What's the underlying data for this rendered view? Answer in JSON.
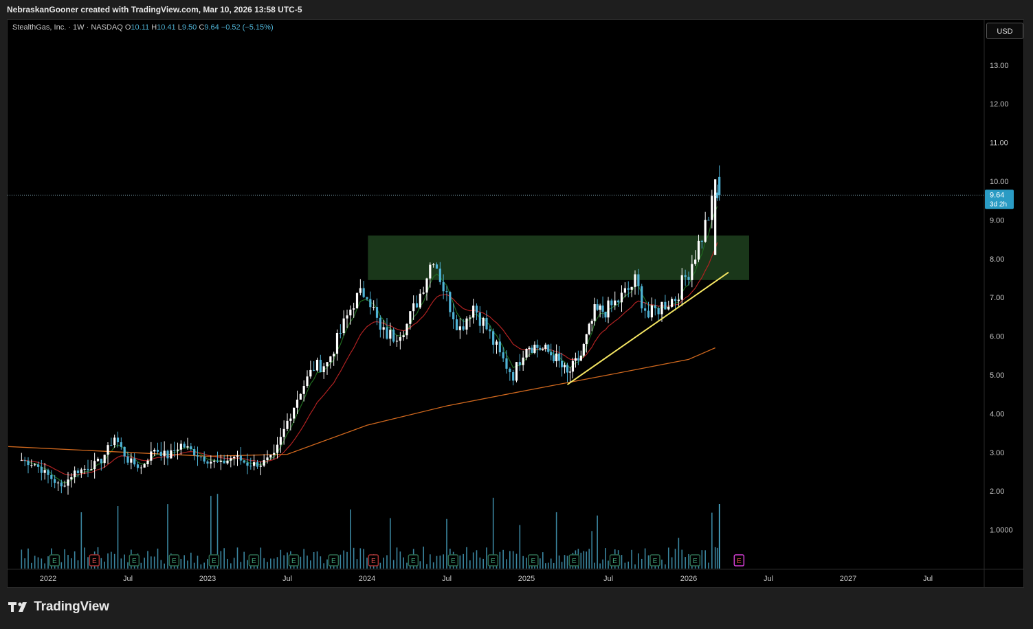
{
  "header": {
    "attribution": "NebraskanGooner created with TradingView.com, Mar 10, 2026 13:58 UTC-5"
  },
  "legend": {
    "symbol": "StealthGas, Inc. · 1W · NASDAQ",
    "open_label": "O",
    "open": "10.11",
    "high_label": "H",
    "high": "10.41",
    "low_label": "L",
    "low": "9.50",
    "close_label": "C",
    "close": "9.64",
    "change": "−0.52 (−5.15%)"
  },
  "currency_button": "USD",
  "last_price": {
    "price": "9.64",
    "countdown": "3d 2h"
  },
  "earnings_marker": "E",
  "footer": {
    "brand": "TradingView"
  },
  "colors": {
    "up": "#ffffff",
    "down": "#4fb3d6",
    "ma_fast": "#1f6b1f",
    "ma_mid": "#b22222",
    "ma_slow": "#d2691e",
    "zone": "#1b3a1b",
    "trendline": "#f5e663",
    "volume": "#4fb3d6",
    "earnings_future": "#d63fd6"
  },
  "chart_data": {
    "type": "candlestick",
    "title": "StealthGas, Inc. · 1W · NASDAQ",
    "ylim": [
      0,
      13.8
    ],
    "y_ticks": [
      "13.00",
      "12.00",
      "11.00",
      "10.00",
      "9.00",
      "8.00",
      "7.00",
      "6.00",
      "5.00",
      "4.00",
      "3.00",
      "2.00",
      "1.0000"
    ],
    "y_tick_values": [
      13,
      12,
      11,
      10,
      9,
      8,
      7,
      6,
      5,
      4,
      3,
      2,
      1
    ],
    "x_ticks": [
      "2022",
      "Jul",
      "2023",
      "Jul",
      "2024",
      "Jul",
      "2025",
      "Jul",
      "2026",
      "Jul",
      "2027",
      "Jul"
    ],
    "x_tick_dates": [
      "2022-01",
      "2022-07",
      "2023-01",
      "2023-07",
      "2024-01",
      "2024-07",
      "2025-01",
      "2025-07",
      "2026-01",
      "2026-07",
      "2027-01",
      "2027-07"
    ],
    "close_price_series": [
      [
        "2021-11",
        2.8
      ],
      [
        "2021-12",
        2.7
      ],
      [
        "2022-01",
        2.4
      ],
      [
        "2022-02",
        2.1
      ],
      [
        "2022-03",
        2.5
      ],
      [
        "2022-04",
        2.6
      ],
      [
        "2022-05",
        2.8
      ],
      [
        "2022-06",
        3.4
      ],
      [
        "2022-07",
        2.8
      ],
      [
        "2022-08",
        2.6
      ],
      [
        "2022-09",
        3.1
      ],
      [
        "2022-10",
        2.9
      ],
      [
        "2022-11",
        3.2
      ],
      [
        "2022-12",
        3.0
      ],
      [
        "2023-01",
        2.8
      ],
      [
        "2023-02",
        2.7
      ],
      [
        "2023-03",
        2.9
      ],
      [
        "2023-04",
        2.7
      ],
      [
        "2023-05",
        2.7
      ],
      [
        "2023-06",
        2.9
      ],
      [
        "2023-07",
        3.8
      ],
      [
        "2023-08",
        4.6
      ],
      [
        "2023-09",
        5.2
      ],
      [
        "2023-10",
        5.3
      ],
      [
        "2023-11",
        6.1
      ],
      [
        "2023-12",
        6.9
      ],
      [
        "2024-01",
        7.2
      ],
      [
        "2024-02",
        6.1
      ],
      [
        "2024-03",
        6.0
      ],
      [
        "2024-04",
        6.3
      ],
      [
        "2024-05",
        7.1
      ],
      [
        "2024-06",
        8.1
      ],
      [
        "2024-07",
        7.0
      ],
      [
        "2024-08",
        6.2
      ],
      [
        "2024-09",
        6.8
      ],
      [
        "2024-10",
        6.2
      ],
      [
        "2024-11",
        5.5
      ],
      [
        "2024-12",
        5.0
      ],
      [
        "2025-01",
        5.8
      ],
      [
        "2025-02",
        5.7
      ],
      [
        "2025-03",
        5.5
      ],
      [
        "2025-04",
        5.0
      ],
      [
        "2025-05",
        5.5
      ],
      [
        "2025-06",
        6.6
      ],
      [
        "2025-07",
        6.7
      ],
      [
        "2025-08",
        7.0
      ],
      [
        "2025-09",
        7.4
      ],
      [
        "2025-10",
        6.5
      ],
      [
        "2025-11",
        6.8
      ],
      [
        "2025-12",
        7.0
      ],
      [
        "2026-01",
        7.7
      ],
      [
        "2026-02",
        8.6
      ],
      [
        "2026-03",
        9.64
      ]
    ],
    "last_candle": {
      "date": "2026-03-09",
      "open": 10.11,
      "high": 10.41,
      "low": 9.5,
      "close": 9.64
    },
    "series": [
      {
        "type": "ma",
        "color": "#d2691e",
        "values": [
          [
            "2021-11",
            3.15
          ],
          [
            "2022-07",
            3.0
          ],
          [
            "2023-01",
            2.9
          ],
          [
            "2023-07",
            2.95
          ],
          [
            "2024-01",
            3.7
          ],
          [
            "2024-07",
            4.2
          ],
          [
            "2025-01",
            4.6
          ],
          [
            "2025-07",
            5.0
          ],
          [
            "2026-01",
            5.4
          ],
          [
            "2026-03",
            5.7
          ]
        ]
      }
    ],
    "annotations": {
      "resistance_zone": {
        "from_price": 7.45,
        "to_price": 8.6,
        "from_date": "2023-11",
        "to_date": "2026-04"
      },
      "trendline": {
        "from": [
          "2025-04",
          4.75
        ],
        "to": [
          "2026-04",
          7.65
        ]
      }
    }
  }
}
